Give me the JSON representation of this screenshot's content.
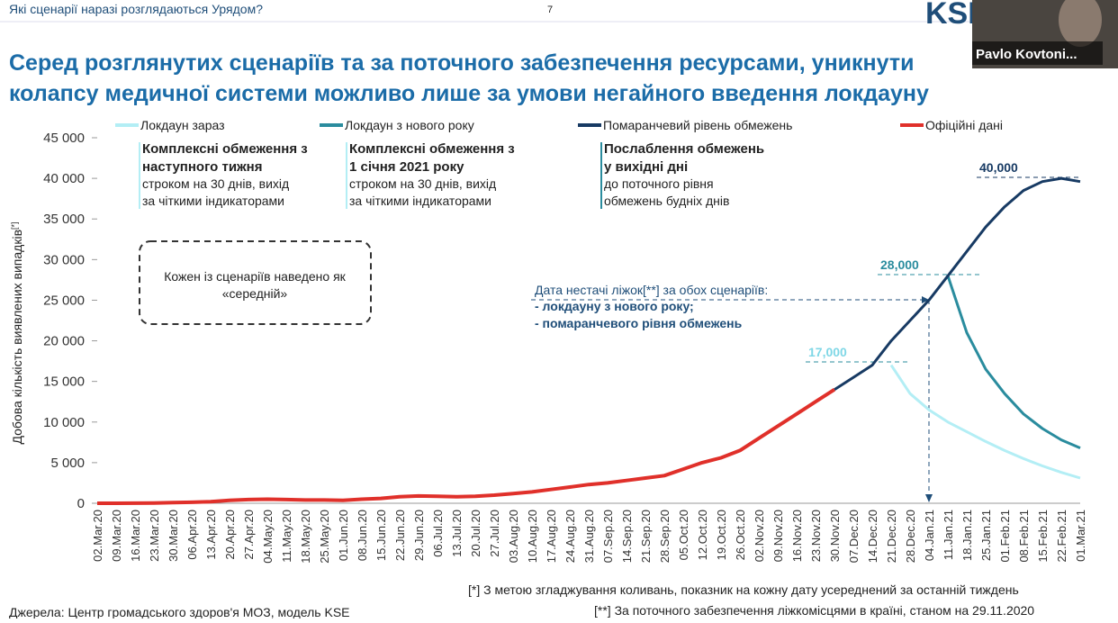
{
  "header": "Які сценарії наразі розглядаються Урядом?",
  "page_number": "7",
  "logo": "KSE",
  "video": {
    "name": "Pavlo Kovtoni..."
  },
  "slide_title": [
    "Серед розглянутих сценаріїв та за поточного забезпечення ресурсами, уникнути",
    "колапсу медичної системи можливо лише за умови негайного введення локдауну"
  ],
  "chart_data": {
    "type": "line",
    "y_label": "Добова кількість виявлених випадків",
    "y_label_note": "[*]",
    "categories": [
      "02.Mar.20",
      "09.Mar.20",
      "16.Mar.20",
      "23.Mar.20",
      "30.Mar.20",
      "06.Apr.20",
      "13.Apr.20",
      "20.Apr.20",
      "27.Apr.20",
      "04.May.20",
      "11.May.20",
      "18.May.20",
      "25.May.20",
      "01.Jun.20",
      "08.Jun.20",
      "15.Jun.20",
      "22.Jun.20",
      "29.Jun.20",
      "06.Jul.20",
      "13.Jul.20",
      "20.Jul.20",
      "27.Jul.20",
      "03.Aug.20",
      "10.Aug.20",
      "17.Aug.20",
      "24.Aug.20",
      "31.Aug.20",
      "07.Sep.20",
      "14.Sep.20",
      "21.Sep.20",
      "28.Sep.20",
      "05.Oct.20",
      "12.Oct.20",
      "19.Oct.20",
      "26.Oct.20",
      "02.Nov.20",
      "09.Nov.20",
      "16.Nov.20",
      "23.Nov.20",
      "30.Nov.20",
      "07.Dec.20",
      "14.Dec.20",
      "21.Dec.20",
      "28.Dec.20",
      "04.Jan.21",
      "11.Jan.21",
      "18.Jan.21",
      "25.Jan.21",
      "01.Feb.21",
      "08.Feb.21",
      "15.Feb.21",
      "22.Feb.21",
      "01.Mar.21"
    ],
    "series": [
      {
        "name": "Локдаун зараз",
        "color": "#b3eef5",
        "values": [
          null,
          null,
          null,
          null,
          null,
          null,
          null,
          null,
          null,
          null,
          null,
          null,
          null,
          null,
          null,
          null,
          null,
          null,
          null,
          null,
          null,
          null,
          null,
          null,
          null,
          null,
          null,
          null,
          null,
          null,
          null,
          null,
          null,
          null,
          null,
          null,
          null,
          null,
          null,
          null,
          null,
          null,
          17000,
          13500,
          11500,
          10000,
          8800,
          7600,
          6500,
          5500,
          4600,
          3800,
          3100
        ]
      },
      {
        "name": "Локдаун з нового року",
        "color": "#2a8c9e",
        "values": [
          null,
          null,
          null,
          null,
          null,
          null,
          null,
          null,
          null,
          null,
          null,
          null,
          null,
          null,
          null,
          null,
          null,
          null,
          null,
          null,
          null,
          null,
          null,
          null,
          null,
          null,
          null,
          null,
          null,
          null,
          null,
          null,
          null,
          null,
          null,
          null,
          null,
          null,
          null,
          null,
          null,
          null,
          null,
          null,
          null,
          28000,
          21000,
          16500,
          13500,
          11000,
          9200,
          7800,
          6800
        ]
      },
      {
        "name": "Помаранчевий рівень обмежень",
        "color": "#173a63",
        "values": [
          null,
          null,
          null,
          null,
          null,
          null,
          null,
          null,
          null,
          null,
          null,
          null,
          null,
          null,
          null,
          null,
          null,
          null,
          null,
          null,
          null,
          null,
          null,
          null,
          null,
          null,
          null,
          null,
          null,
          null,
          null,
          null,
          null,
          null,
          null,
          null,
          null,
          null,
          null,
          14000,
          15500,
          17000,
          20000,
          22500,
          25000,
          28000,
          31000,
          34000,
          36500,
          38500,
          39600,
          40000,
          39600
        ]
      },
      {
        "name": "Офіційні дані",
        "color": "#e0302a",
        "values": [
          0,
          5,
          10,
          30,
          80,
          120,
          200,
          350,
          450,
          500,
          450,
          400,
          400,
          350,
          500,
          600,
          800,
          900,
          850,
          800,
          850,
          1000,
          1200,
          1400,
          1700,
          2000,
          2300,
          2500,
          2800,
          3100,
          3400,
          4200,
          5000,
          5600,
          6500,
          8000,
          9500,
          11000,
          12500,
          14000,
          null,
          null,
          null,
          null,
          null,
          null,
          null,
          null,
          null,
          null,
          null,
          null,
          null
        ]
      }
    ],
    "ylim": [
      0,
      45000
    ],
    "yticks": [
      0,
      {
        "value": 5000,
        "label": "5 000"
      },
      {
        "value": 10000,
        "label": "10 000"
      },
      {
        "value": 15000,
        "label": "15 000"
      },
      {
        "value": 20000,
        "label": "20 000"
      },
      {
        "value": 25000,
        "label": "25 000"
      },
      {
        "value": 30000,
        "label": "30 000"
      },
      {
        "value": 35000,
        "label": "35 000"
      },
      {
        "value": 40000,
        "label": "40 000"
      },
      {
        "value": 45000,
        "label": "45 000"
      }
    ],
    "point_labels": [
      "17,000",
      "28,000",
      "40,000"
    ],
    "scenario_notes": [
      {
        "title": [
          "Комплексні обмеження з",
          "наступного тижня"
        ],
        "body": [
          "строком на 30 днів, вихід",
          "за чіткими індикаторами"
        ]
      },
      {
        "title": [
          "Комплексні обмеження з",
          "1 січня 2021 року"
        ],
        "body": [
          "строком на 30 днів, вихід",
          "за чіткими індикаторами"
        ]
      },
      {
        "title": [
          "Послаблення обмежень",
          "у вихідні дні"
        ],
        "body": [
          "до поточного рівня",
          "обмежень будніх днів"
        ]
      }
    ],
    "bubble": [
      "Кожен із сценаріїв наведено як",
      "«середній»"
    ],
    "shortage_note": [
      "Дата нестачі ліжок[**] за обох сценаріїв:",
      "- локдауну з нового року;",
      "- помаранчевого рівня обмежень"
    ]
  },
  "footnotes": [
    "[*] З метою згладжування коливань, показник на кожну дату усереднений за останній тиждень",
    "[**] За поточного забезпечення ліжкомісцями в країні, станом на 29.11.2020"
  ],
  "source": "Джерела: Центр громадського здоров'я МОЗ, модель KSE"
}
